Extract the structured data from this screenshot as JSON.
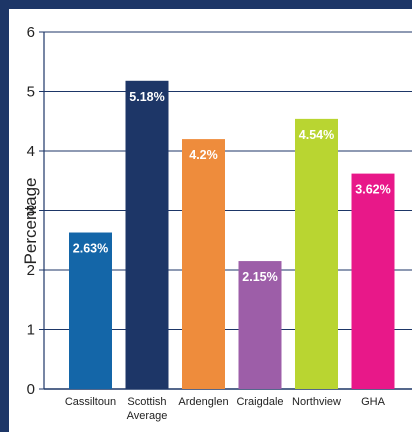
{
  "chart_data": {
    "type": "bar",
    "title": "",
    "xlabel": "",
    "ylabel": "Percentage",
    "ylim": [
      0,
      6
    ],
    "yticks": [
      0,
      1,
      2,
      3,
      4,
      5,
      6
    ],
    "grid": true,
    "categories": [
      {
        "label_lines": [
          "Cassiltoun"
        ],
        "value": 2.63,
        "label": "2.63%",
        "color": "#1466a8"
      },
      {
        "label_lines": [
          "Scottish",
          "Average"
        ],
        "value": 5.18,
        "label": "5.18%",
        "color": "#1d3667"
      },
      {
        "label_lines": [
          "Ardenglen"
        ],
        "value": 4.2,
        "label": "4.2%",
        "color": "#ee8c3c"
      },
      {
        "label_lines": [
          "Craigdale"
        ],
        "value": 2.15,
        "label": "2.15%",
        "color": "#9d5ea8"
      },
      {
        "label_lines": [
          "Northview"
        ],
        "value": 4.54,
        "label": "4.54%",
        "color": "#b9d531"
      },
      {
        "label_lines": [
          "GHA"
        ],
        "value": 3.62,
        "label": "3.62%",
        "color": "#e81889"
      }
    ]
  },
  "colors": {
    "frame": "#1d3667",
    "grid": "#1d3667",
    "axis": "#1d3667",
    "text": "#222222",
    "value_label": "#ffffff"
  }
}
